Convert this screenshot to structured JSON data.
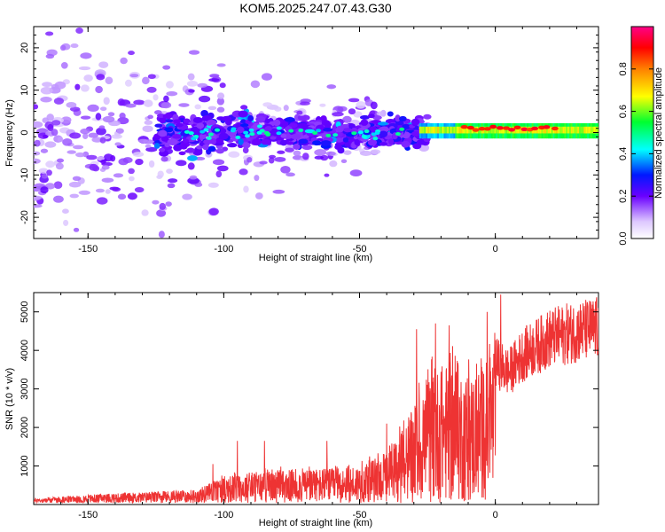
{
  "title": "KOM5.2025.247.07.43.G30",
  "chart_data": [
    {
      "type": "heatmap",
      "name": "spectrogram",
      "xlabel": "Height of straight line (km)",
      "ylabel": "Frequency (Hz)",
      "xlim": [
        -170,
        38
      ],
      "ylim": [
        -25,
        25
      ],
      "xticks": [
        -150,
        -100,
        -50,
        0
      ],
      "xtick_labels": [
        "-150",
        "-100",
        "-50",
        "0"
      ],
      "yticks": [
        20,
        10,
        0,
        -10,
        -20
      ],
      "ytick_labels": [
        "20",
        "10",
        "0",
        "-10",
        "-20"
      ],
      "colorbar": {
        "label": "Normalized spectral amplitude",
        "range": [
          0.0,
          1.0
        ],
        "ticks": [
          0.0,
          0.2,
          0.4,
          0.6,
          0.8
        ],
        "tick_labels": [
          "0.0",
          "0.2",
          "0.4",
          "0.6",
          "0.8"
        ]
      },
      "description_points": [
        {
          "x": -10,
          "y": 0.5,
          "amplitude": 0.95
        },
        {
          "x": 5,
          "y": 0.8,
          "amplitude": 0.95
        },
        {
          "x": 15,
          "y": 1.0,
          "amplitude": 0.9
        },
        {
          "x": -60,
          "y": 0,
          "amplitude": 0.3
        },
        {
          "x": -100,
          "y": 0,
          "amplitude": 0.25
        },
        {
          "x": -150,
          "y": 0,
          "amplitude": 0.15
        }
      ]
    },
    {
      "type": "line",
      "name": "snr",
      "xlabel": "Height of straight line (km)",
      "ylabel": "SNR (10 * v/v)",
      "xlim": [
        -170,
        38
      ],
      "ylim": [
        0,
        5500
      ],
      "xticks": [
        -150,
        -100,
        -50,
        0
      ],
      "xtick_labels": [
        "-150",
        "-100",
        "-50",
        "0"
      ],
      "yticks": [
        1000,
        2000,
        3000,
        4000,
        5000
      ],
      "ytick_labels": [
        "1000",
        "2000",
        "3000",
        "4000",
        "5000"
      ],
      "color": "#ee3333",
      "series": [
        {
          "name": "SNR",
          "envelope_x": [
            -170,
            -150,
            -130,
            -110,
            -100,
            -90,
            -80,
            -70,
            -60,
            -50,
            -40,
            -35,
            -30,
            -25,
            -20,
            -15,
            -10,
            -5,
            0,
            5,
            10,
            20,
            30,
            38
          ],
          "envelope_y": [
            120,
            220,
            280,
            350,
            700,
            800,
            850,
            900,
            900,
            1000,
            1300,
            1800,
            2500,
            3200,
            3600,
            3700,
            3300,
            3600,
            4200,
            3900,
            4400,
            4900,
            5100,
            5200
          ],
          "peaks_x": [
            -104,
            -95,
            -85,
            -62,
            -40,
            -29,
            -22,
            -17,
            -3,
            2
          ],
          "peaks_y": [
            1050,
            1650,
            1650,
            1650,
            2100,
            4550,
            4700,
            4650,
            5000,
            5450
          ]
        }
      ]
    }
  ]
}
